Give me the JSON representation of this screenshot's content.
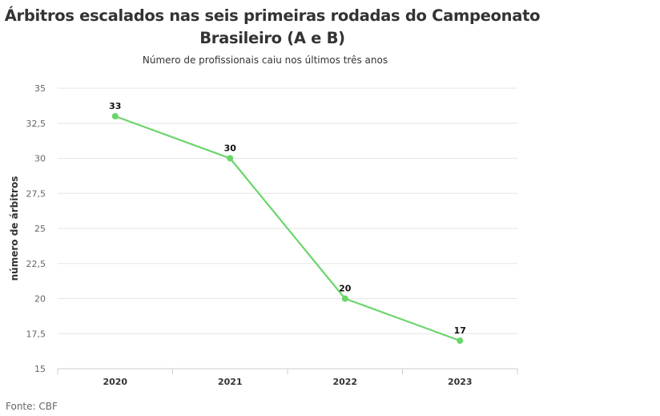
{
  "chart_data": {
    "type": "line",
    "title": "Árbitros escalados nas seis primeiras rodadas do Campeonato Brasileiro (A e B)",
    "title_lines": [
      "Árbitros escalados nas seis primeiras rodadas do Campeonato",
      "Brasileiro (A e B)"
    ],
    "subtitle": "Número de profissionais caiu nos últimos três anos",
    "xlabel": "",
    "ylabel": "número de árbitros",
    "categories": [
      "2020",
      "2021",
      "2022",
      "2023"
    ],
    "values": [
      33,
      30,
      20,
      17
    ],
    "ylim": [
      15,
      35
    ],
    "yticks": [
      15,
      17.5,
      20,
      22.5,
      25,
      27.5,
      30,
      32.5,
      35
    ],
    "ytick_labels": [
      "15",
      "17,5",
      "20",
      "22,5",
      "25",
      "27,5",
      "30",
      "32,5",
      "35"
    ],
    "grid": true,
    "line_color": "#6bd56b",
    "source": "Fonte: CBF"
  }
}
